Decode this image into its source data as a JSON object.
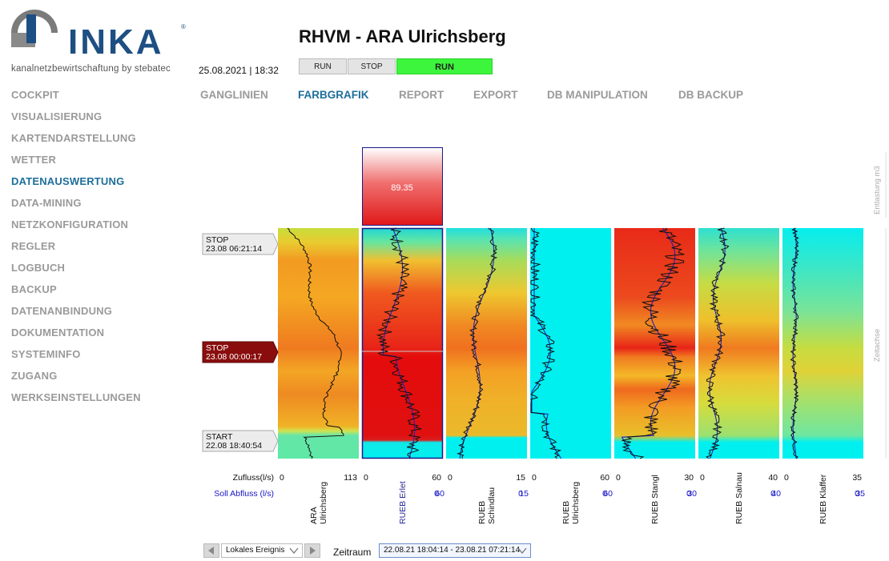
{
  "brand": {
    "name": "INKA",
    "registered": "®",
    "tagline": "kanalnetzbewirtschaftung by stebatec"
  },
  "header": {
    "datetime": "25.08.2021 | 18:32",
    "title": "RHVM - ARA Ulrichsberg",
    "state_buttons": [
      {
        "label": "RUN",
        "active": false
      },
      {
        "label": "STOP",
        "active": false
      },
      {
        "label": "RUN",
        "active": true
      }
    ]
  },
  "sidebar": {
    "items": [
      {
        "label": "COCKPIT",
        "active": false
      },
      {
        "label": "VISUALISIERUNG",
        "active": false
      },
      {
        "label": "KARTENDARSTELLUNG",
        "active": false
      },
      {
        "label": "WETTER",
        "active": false
      },
      {
        "label": "DATENAUSWERTUNG",
        "active": true
      },
      {
        "label": "DATA-MINING",
        "active": false
      },
      {
        "label": "NETZKONFIGURATION",
        "active": false
      },
      {
        "label": "REGLER",
        "active": false
      },
      {
        "label": "LOGBUCH",
        "active": false
      },
      {
        "label": "BACKUP",
        "active": false
      },
      {
        "label": "DATENANBINDUNG",
        "active": false
      },
      {
        "label": "DOKUMENTATION",
        "active": false
      },
      {
        "label": "SYSTEMINFO",
        "active": false
      },
      {
        "label": "ZUGANG",
        "active": false
      },
      {
        "label": "WERKSEINSTELLUNGEN",
        "active": false
      }
    ]
  },
  "tabs": [
    {
      "label": "GANGLINIEN",
      "active": false
    },
    {
      "label": "FARBGRAFIK",
      "active": true
    },
    {
      "label": "REPORT",
      "active": false
    },
    {
      "label": "EXPORT",
      "active": false
    },
    {
      "label": "DB MANIPULATION",
      "active": false
    },
    {
      "label": "DB BACKUP",
      "active": false
    }
  ],
  "markers": [
    {
      "label": "STOP",
      "time": "23.08 06:21:14",
      "style": "light"
    },
    {
      "label": "STOP",
      "time": "23.08 00:00:17",
      "style": "dark"
    },
    {
      "label": "START",
      "time": "22.08 18:40:54",
      "style": "light"
    }
  ],
  "overflow_box": {
    "value": "89.35"
  },
  "side_labels": {
    "top": "Entlastung m3",
    "bottom": "Zeitachse"
  },
  "row_labels": {
    "zufluss": "Zufluss(l/s)",
    "soll": "Soll Abfluss (l/s)"
  },
  "colors": {
    "accent": "#1d6e9a",
    "run_active": "#3cf53c",
    "soll_blue": "#1515c8",
    "marker_dark": "#8a0d0d",
    "cyan": "#00f2f2"
  },
  "columns": [
    {
      "name": "ARA\nUlrichsberg",
      "z_min": "0",
      "z_max": "113",
      "s_min": "",
      "s_max": "",
      "selected": false
    },
    {
      "name": "RUEB Erlet",
      "z_min": "0",
      "z_max": "60",
      "s_min": "0",
      "s_max": "60",
      "selected": true
    },
    {
      "name": "RUEB\nSchindlau",
      "z_min": "0",
      "z_max": "15",
      "s_min": "0",
      "s_max": "15",
      "selected": false
    },
    {
      "name": "RUEB\nUlrichsberg",
      "z_min": "0",
      "z_max": "60",
      "s_min": "0",
      "s_max": "60",
      "selected": false
    },
    {
      "name": "RUEB Stangl",
      "z_min": "0",
      "z_max": "30",
      "s_min": "0",
      "s_max": "30",
      "selected": false
    },
    {
      "name": "RUEB Salnau",
      "z_min": "0",
      "z_max": "40",
      "s_min": "0",
      "s_max": "40",
      "selected": false
    },
    {
      "name": "RUEB Klaffer",
      "z_min": "0",
      "z_max": "35",
      "s_min": "0",
      "s_max": "35",
      "selected": false
    }
  ],
  "footer": {
    "event": "Lokales Ereignis",
    "zeitraum_label": "Zeitraum",
    "zeitraum": "22.08.21 18:04:14 - 23.08.21 07:21:14"
  }
}
